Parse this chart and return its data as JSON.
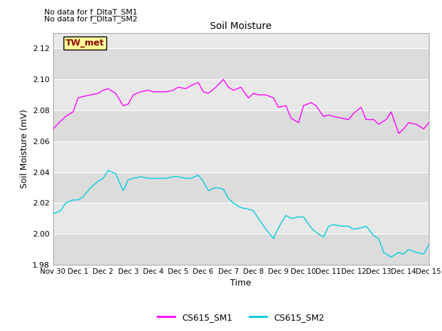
{
  "title": "Soil Moisture",
  "ylabel": "Soil Moisture (mV)",
  "xlabel": "Time",
  "ylim": [
    1.98,
    2.13
  ],
  "yticks": [
    1.98,
    2.0,
    2.02,
    2.04,
    2.06,
    2.08,
    2.1,
    2.12
  ],
  "color_sm1": "#FF00FF",
  "color_sm2": "#00CCDD",
  "annotation1": "No data for f_DltaT_SM1",
  "annotation2": "No data for f_DltaT_SM2",
  "tw_met_label": "TW_met",
  "legend_sm1": "CS615_SM1",
  "legend_sm2": "CS615_SM2",
  "xtick_labels": [
    "Nov 30",
    "Dec 1",
    "Dec 2",
    "Dec 3",
    "Dec 4",
    "Dec 5",
    "Dec 6",
    "Dec 7",
    "Dec 8",
    "Dec 9",
    "Dec 10",
    "Dec 11",
    "Dec 12",
    "Dec 13",
    "Dec 14",
    "Dec 15"
  ],
  "sm1_x": [
    0,
    0.3,
    0.5,
    0.8,
    1.0,
    1.2,
    1.5,
    1.8,
    2.0,
    2.2,
    2.5,
    2.8,
    3.0,
    3.2,
    3.5,
    3.8,
    4.0,
    4.2,
    4.5,
    4.8,
    5.0,
    5.3,
    5.5,
    5.8,
    6.0,
    6.2,
    6.5,
    6.8,
    7.0,
    7.2,
    7.5,
    7.8,
    8.0,
    8.2,
    8.5,
    8.8,
    9.0,
    9.3,
    9.5,
    9.8,
    10.0,
    10.3,
    10.5,
    10.8,
    11.0,
    11.2,
    11.5,
    11.8,
    12.0,
    12.3,
    12.5,
    12.8,
    13.0,
    13.3,
    13.5,
    13.8,
    14.0,
    14.2,
    14.5,
    14.8,
    15.0
  ],
  "sm1_y": [
    2.068,
    2.073,
    2.076,
    2.079,
    2.088,
    2.089,
    2.09,
    2.091,
    2.093,
    2.094,
    2.091,
    2.083,
    2.084,
    2.09,
    2.092,
    2.093,
    2.092,
    2.092,
    2.092,
    2.093,
    2.095,
    2.094,
    2.096,
    2.098,
    2.092,
    2.091,
    2.095,
    2.1,
    2.095,
    2.093,
    2.095,
    2.088,
    2.091,
    2.09,
    2.09,
    2.088,
    2.082,
    2.083,
    2.075,
    2.072,
    2.083,
    2.085,
    2.083,
    2.076,
    2.077,
    2.076,
    2.075,
    2.074,
    2.078,
    2.082,
    2.074,
    2.074,
    2.071,
    2.074,
    2.079,
    2.065,
    2.068,
    2.072,
    2.071,
    2.068,
    2.072
  ],
  "sm2_x": [
    0,
    0.3,
    0.5,
    0.8,
    1.0,
    1.2,
    1.5,
    1.8,
    2.0,
    2.2,
    2.5,
    2.8,
    3.0,
    3.2,
    3.5,
    3.8,
    4.0,
    4.2,
    4.5,
    4.8,
    5.0,
    5.3,
    5.5,
    5.8,
    6.0,
    6.2,
    6.5,
    6.8,
    7.0,
    7.2,
    7.5,
    7.8,
    8.0,
    8.2,
    8.5,
    8.8,
    9.0,
    9.3,
    9.5,
    9.8,
    10.0,
    10.3,
    10.5,
    10.8,
    11.0,
    11.2,
    11.5,
    11.8,
    12.0,
    12.3,
    12.5,
    12.8,
    13.0,
    13.2,
    13.5,
    13.8,
    14.0,
    14.2,
    14.5,
    14.8,
    15.0
  ],
  "sm2_y": [
    2.013,
    2.015,
    2.02,
    2.022,
    2.022,
    2.024,
    2.03,
    2.034,
    2.036,
    2.041,
    2.039,
    2.028,
    2.035,
    2.036,
    2.037,
    2.036,
    2.036,
    2.036,
    2.036,
    2.037,
    2.037,
    2.036,
    2.036,
    2.038,
    2.034,
    2.028,
    2.03,
    2.029,
    2.023,
    2.02,
    2.017,
    2.016,
    2.015,
    2.01,
    2.003,
    1.997,
    2.004,
    2.012,
    2.01,
    2.011,
    2.011,
    2.004,
    2.001,
    1.998,
    2.005,
    2.006,
    2.005,
    2.005,
    2.003,
    2.004,
    2.005,
    1.999,
    1.997,
    1.988,
    1.985,
    1.988,
    1.987,
    1.99,
    1.988,
    1.987,
    1.993
  ]
}
